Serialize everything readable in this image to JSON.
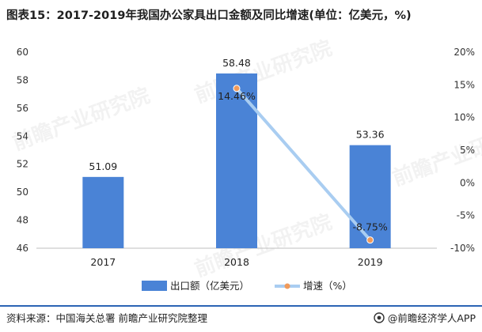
{
  "title": "图表15：2017-2019年我国办公家具出口金额及同比增速(单位：亿美元，%)",
  "source": "资料来源：中国海关总署 前瞻产业研究院整理",
  "brand": "@前瞻经济学人APP",
  "watermark": "前瞻产业研究院",
  "colors": {
    "bar": "#4a83d6",
    "line": "#a9cdf1",
    "marker": "#f09a5a",
    "footer_rule": "#2b64b4",
    "axis": "#bfbfbf"
  },
  "chart_data": {
    "type": "bar",
    "categories": [
      "2017",
      "2018",
      "2019"
    ],
    "series": [
      {
        "name": "出口额（亿美元）",
        "type": "bar",
        "axis": "left",
        "values": [
          51.09,
          58.48,
          53.36
        ],
        "labels": [
          "51.09",
          "58.48",
          "53.36"
        ]
      },
      {
        "name": "增速（%）",
        "type": "line",
        "axis": "right",
        "x": [
          "2018",
          "2019"
        ],
        "values": [
          14.46,
          -8.75
        ],
        "labels": [
          "14.46%",
          "-8.75%"
        ]
      }
    ],
    "ylim_left": [
      46,
      60
    ],
    "yticks_left": [
      "46",
      "48",
      "50",
      "52",
      "54",
      "56",
      "58",
      "60"
    ],
    "ylim_right": [
      -10,
      20
    ],
    "yticks_right": [
      "-10%",
      "-5%",
      "0%",
      "5%",
      "10%",
      "15%",
      "20%"
    ],
    "legend_position": "bottom-center",
    "grid": false
  }
}
